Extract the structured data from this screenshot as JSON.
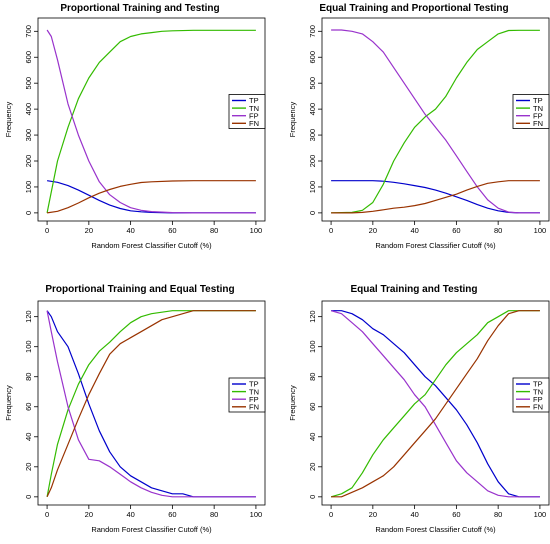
{
  "chart_data": [
    {
      "type": "line",
      "title": "Proportional Training and Testing",
      "xlabel": "Random Forest Classifier Cutoff (%)",
      "ylabel": "Frequency",
      "xlim": [
        0,
        100
      ],
      "ylim": [
        0,
        720
      ],
      "xticks": [
        0,
        20,
        40,
        60,
        80,
        100
      ],
      "yticks": [
        0,
        100,
        200,
        300,
        400,
        500,
        600,
        700
      ],
      "legend": "right",
      "series": [
        {
          "name": "TP",
          "color": "#0000cc",
          "x": [
            0,
            5,
            10,
            15,
            20,
            25,
            30,
            35,
            40,
            45,
            50,
            60,
            70,
            80,
            90,
            100
          ],
          "y": [
            124,
            118,
            105,
            88,
            68,
            48,
            30,
            17,
            8,
            4,
            2,
            0,
            0,
            0,
            0,
            0
          ]
        },
        {
          "name": "TN",
          "color": "#33bb00",
          "x": [
            0,
            5,
            10,
            15,
            20,
            25,
            30,
            35,
            40,
            45,
            50,
            55,
            60,
            70,
            80,
            90,
            100
          ],
          "y": [
            0,
            200,
            330,
            440,
            520,
            580,
            620,
            660,
            680,
            690,
            695,
            700,
            702,
            704,
            704,
            704,
            704
          ]
        },
        {
          "name": "FP",
          "color": "#9933cc",
          "x": [
            0,
            2,
            5,
            10,
            15,
            20,
            25,
            30,
            35,
            40,
            45,
            50,
            60,
            70,
            80,
            90,
            100
          ],
          "y": [
            705,
            680,
            590,
            420,
            300,
            200,
            120,
            70,
            40,
            20,
            10,
            5,
            1,
            0,
            0,
            0,
            0
          ]
        },
        {
          "name": "FN",
          "color": "#993300",
          "x": [
            0,
            5,
            10,
            15,
            20,
            25,
            30,
            35,
            40,
            45,
            50,
            60,
            70,
            80,
            90,
            100
          ],
          "y": [
            0,
            6,
            20,
            38,
            58,
            76,
            90,
            102,
            110,
            117,
            120,
            123,
            124,
            124,
            124,
            124
          ]
        }
      ]
    },
    {
      "type": "line",
      "title": "Equal Training and Proportional Testing",
      "xlabel": "Random Forest Classifier Cutoff (%)",
      "ylabel": "Frequency",
      "xlim": [
        0,
        100
      ],
      "ylim": [
        0,
        720
      ],
      "xticks": [
        0,
        20,
        40,
        60,
        80,
        100
      ],
      "yticks": [
        0,
        100,
        200,
        300,
        400,
        500,
        600,
        700
      ],
      "legend": "right",
      "series": [
        {
          "name": "TP",
          "color": "#0000cc",
          "x": [
            0,
            10,
            20,
            25,
            30,
            35,
            40,
            45,
            50,
            55,
            60,
            65,
            70,
            75,
            80,
            85,
            90,
            100
          ],
          "y": [
            124,
            124,
            124,
            122,
            118,
            112,
            105,
            98,
            88,
            76,
            62,
            48,
            32,
            18,
            8,
            2,
            0,
            0
          ]
        },
        {
          "name": "TN",
          "color": "#33bb00",
          "x": [
            0,
            10,
            15,
            20,
            25,
            30,
            35,
            40,
            45,
            50,
            55,
            60,
            65,
            70,
            75,
            80,
            85,
            90,
            100
          ],
          "y": [
            0,
            2,
            10,
            40,
            110,
            200,
            270,
            330,
            370,
            400,
            450,
            520,
            580,
            630,
            660,
            690,
            703,
            704,
            704
          ]
        },
        {
          "name": "FP",
          "color": "#9933cc",
          "x": [
            0,
            5,
            10,
            15,
            20,
            25,
            30,
            35,
            40,
            45,
            50,
            55,
            60,
            65,
            70,
            75,
            80,
            85,
            90,
            100
          ],
          "y": [
            705,
            705,
            700,
            690,
            660,
            620,
            560,
            500,
            440,
            380,
            330,
            280,
            220,
            160,
            100,
            50,
            18,
            3,
            0,
            0
          ]
        },
        {
          "name": "FN",
          "color": "#993300",
          "x": [
            0,
            10,
            15,
            20,
            25,
            30,
            35,
            40,
            45,
            50,
            55,
            60,
            65,
            70,
            75,
            80,
            85,
            90,
            100
          ],
          "y": [
            0,
            0,
            2,
            6,
            12,
            18,
            22,
            28,
            36,
            48,
            60,
            72,
            88,
            102,
            114,
            120,
            124,
            124,
            124
          ]
        }
      ]
    },
    {
      "type": "line",
      "title": "Proportional Training and Equal Testing",
      "xlabel": "Random Forest Classifier Cutoff (%)",
      "ylabel": "Frequency",
      "xlim": [
        0,
        100
      ],
      "ylim": [
        0,
        125
      ],
      "xticks": [
        0,
        20,
        40,
        60,
        80,
        100
      ],
      "yticks": [
        0,
        20,
        40,
        60,
        80,
        100,
        120
      ],
      "legend": "right",
      "series": [
        {
          "name": "TP",
          "color": "#0000cc",
          "x": [
            0,
            2,
            5,
            10,
            15,
            20,
            25,
            30,
            35,
            40,
            45,
            50,
            55,
            60,
            65,
            70,
            80,
            90,
            100
          ],
          "y": [
            124,
            120,
            110,
            100,
            82,
            62,
            44,
            30,
            20,
            14,
            10,
            6,
            4,
            2,
            2,
            0,
            0,
            0,
            0
          ]
        },
        {
          "name": "TN",
          "color": "#33bb00",
          "x": [
            0,
            2,
            5,
            10,
            15,
            20,
            25,
            30,
            35,
            40,
            45,
            50,
            55,
            60,
            70,
            80,
            90,
            100
          ],
          "y": [
            0,
            15,
            35,
            58,
            75,
            88,
            97,
            103,
            110,
            116,
            120,
            122,
            123,
            124,
            124,
            124,
            124,
            124
          ]
        },
        {
          "name": "FP",
          "color": "#9933cc",
          "x": [
            0,
            2,
            5,
            10,
            15,
            20,
            25,
            30,
            35,
            40,
            45,
            50,
            55,
            60,
            70,
            80,
            90,
            100
          ],
          "y": [
            124,
            110,
            90,
            60,
            38,
            25,
            24,
            20,
            15,
            10,
            6,
            3,
            1,
            0,
            0,
            0,
            0,
            0
          ]
        },
        {
          "name": "FN",
          "color": "#993300",
          "x": [
            0,
            2,
            5,
            10,
            15,
            20,
            25,
            30,
            35,
            40,
            45,
            50,
            55,
            60,
            65,
            70,
            80,
            90,
            100
          ],
          "y": [
            0,
            6,
            18,
            35,
            52,
            68,
            82,
            95,
            102,
            106,
            110,
            114,
            118,
            120,
            122,
            124,
            124,
            124,
            124
          ]
        }
      ]
    },
    {
      "type": "line",
      "title": "Equal Training and Testing",
      "xlabel": "Random Forest Classifier Cutoff (%)",
      "ylabel": "Frequency",
      "xlim": [
        0,
        100
      ],
      "ylim": [
        0,
        125
      ],
      "xticks": [
        0,
        20,
        40,
        60,
        80,
        100
      ],
      "yticks": [
        0,
        20,
        40,
        60,
        80,
        100,
        120
      ],
      "legend": "right",
      "series": [
        {
          "name": "TP",
          "color": "#0000cc",
          "x": [
            0,
            5,
            10,
            15,
            20,
            25,
            30,
            35,
            40,
            45,
            50,
            55,
            60,
            65,
            70,
            75,
            80,
            85,
            90,
            100
          ],
          "y": [
            124,
            124,
            122,
            118,
            112,
            108,
            102,
            96,
            88,
            80,
            74,
            66,
            58,
            48,
            36,
            22,
            10,
            2,
            0,
            0
          ]
        },
        {
          "name": "TN",
          "color": "#33bb00",
          "x": [
            0,
            5,
            10,
            15,
            20,
            25,
            30,
            35,
            40,
            45,
            50,
            55,
            60,
            65,
            70,
            75,
            80,
            85,
            90,
            100
          ],
          "y": [
            0,
            2,
            6,
            16,
            28,
            38,
            46,
            54,
            62,
            68,
            78,
            88,
            96,
            102,
            108,
            116,
            120,
            124,
            124,
            124
          ]
        },
        {
          "name": "FP",
          "color": "#9933cc",
          "x": [
            0,
            5,
            10,
            15,
            20,
            25,
            30,
            35,
            40,
            45,
            50,
            55,
            60,
            65,
            70,
            75,
            80,
            85,
            90,
            100
          ],
          "y": [
            124,
            122,
            116,
            110,
            102,
            94,
            86,
            78,
            68,
            60,
            48,
            36,
            24,
            16,
            10,
            4,
            1,
            0,
            0,
            0
          ]
        },
        {
          "name": "FN",
          "color": "#993300",
          "x": [
            0,
            5,
            10,
            15,
            20,
            25,
            30,
            35,
            40,
            45,
            50,
            55,
            60,
            65,
            70,
            75,
            80,
            85,
            90,
            100
          ],
          "y": [
            0,
            0,
            3,
            6,
            10,
            14,
            20,
            28,
            36,
            44,
            52,
            62,
            72,
            82,
            92,
            104,
            114,
            122,
            124,
            124
          ]
        }
      ]
    }
  ]
}
